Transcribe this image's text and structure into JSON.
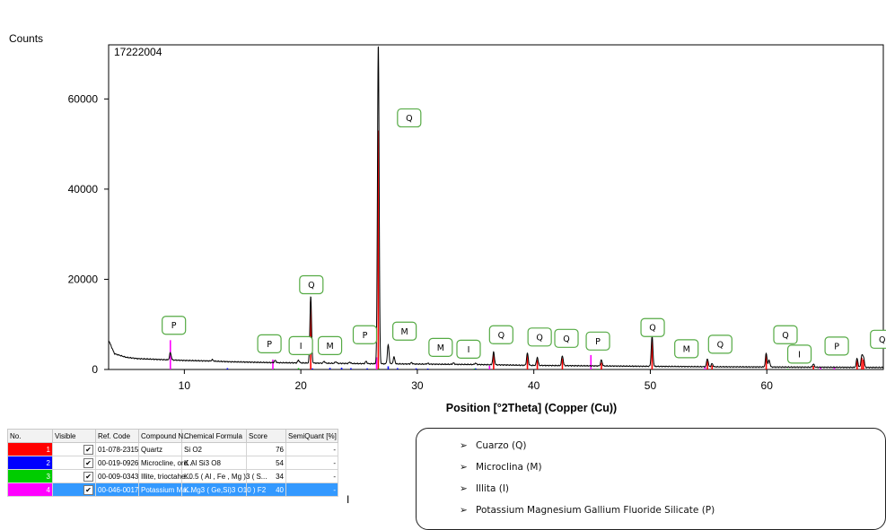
{
  "chart_data": {
    "type": "line",
    "sample_id": "17222004",
    "ylabel": "Counts",
    "xlabel": "Position [°2Theta] (Copper (Cu))",
    "xlim": [
      3.5,
      70
    ],
    "ylim": [
      0,
      72000
    ],
    "xticks": [
      10,
      20,
      30,
      40,
      50,
      60
    ],
    "yticks": [
      0,
      20000,
      40000,
      60000
    ],
    "ytick_labels": [
      "0",
      "20000",
      "40000",
      "60000"
    ],
    "pattern": {
      "name": "17222004",
      "color": "#000000",
      "baseline": [
        [
          3.5,
          6500
        ],
        [
          4,
          3500
        ],
        [
          5,
          2700
        ],
        [
          6,
          2400
        ],
        [
          8,
          2200
        ],
        [
          10,
          2000
        ],
        [
          12,
          1900
        ],
        [
          14,
          1700
        ],
        [
          16,
          1600
        ],
        [
          18,
          1500
        ],
        [
          20,
          1450
        ],
        [
          25,
          1300
        ],
        [
          30,
          1200
        ],
        [
          35,
          1100
        ],
        [
          40,
          900
        ],
        [
          45,
          800
        ],
        [
          50,
          700
        ],
        [
          55,
          600
        ],
        [
          60,
          550
        ],
        [
          65,
          500
        ],
        [
          70,
          450
        ]
      ],
      "peaks": [
        [
          8.8,
          1600
        ],
        [
          12.4,
          300
        ],
        [
          17.8,
          500
        ],
        [
          19.8,
          600
        ],
        [
          20.85,
          14800
        ],
        [
          22.0,
          400
        ],
        [
          23.0,
          350
        ],
        [
          24.2,
          300
        ],
        [
          25.6,
          500
        ],
        [
          26.65,
          71000
        ],
        [
          27.5,
          4200
        ],
        [
          28.0,
          1500
        ],
        [
          29.5,
          300
        ],
        [
          30.9,
          200
        ],
        [
          33.1,
          300
        ],
        [
          35.0,
          300
        ],
        [
          36.55,
          2800
        ],
        [
          39.45,
          2700
        ],
        [
          40.3,
          1800
        ],
        [
          42.45,
          2200
        ],
        [
          45.8,
          1300
        ],
        [
          50.15,
          6700
        ],
        [
          54.9,
          1800
        ],
        [
          55.3,
          700
        ],
        [
          59.95,
          3000
        ],
        [
          60.2,
          1500
        ],
        [
          64.0,
          700
        ],
        [
          67.75,
          2000
        ],
        [
          68.15,
          2500
        ],
        [
          68.3,
          2200
        ]
      ]
    },
    "references": [
      {
        "ref_code": "01-078-2315",
        "compound": "Quartz",
        "color": "#ff0000",
        "sticks": [
          [
            20.85,
            15000
          ],
          [
            26.65,
            53000
          ],
          [
            36.55,
            3400
          ],
          [
            39.45,
            3200
          ],
          [
            40.3,
            2100
          ],
          [
            42.45,
            2500
          ],
          [
            45.8,
            1500
          ],
          [
            50.15,
            6500
          ],
          [
            54.9,
            1900
          ],
          [
            55.3,
            900
          ],
          [
            59.95,
            3400
          ],
          [
            64.0,
            800
          ],
          [
            67.75,
            2000
          ],
          [
            68.15,
            2600
          ],
          [
            68.3,
            2200
          ]
        ]
      },
      {
        "ref_code": "00-019-0926",
        "compound": "Microcline, ord...",
        "color": "#0000ff",
        "sticks": [
          [
            13.7,
            300
          ],
          [
            21.0,
            250
          ],
          [
            22.5,
            350
          ],
          [
            23.5,
            400
          ],
          [
            24.3,
            300
          ],
          [
            25.7,
            250
          ],
          [
            27.5,
            700
          ],
          [
            28.3,
            300
          ],
          [
            29.9,
            250
          ],
          [
            30.9,
            200
          ],
          [
            35.0,
            250
          ]
        ]
      },
      {
        "ref_code": "00-009-0343",
        "compound": "Illite, trioctahe...",
        "color": "#00bb00",
        "sticks": [
          [
            8.8,
            400
          ],
          [
            17.7,
            200
          ],
          [
            19.8,
            300
          ],
          [
            26.7,
            200
          ],
          [
            34.9,
            200
          ],
          [
            45.5,
            150
          ],
          [
            61.8,
            150
          ]
        ]
      },
      {
        "ref_code": "00-046-0017",
        "compound": "Potassium Ma...",
        "color": "#ff00ff",
        "sticks": [
          [
            8.8,
            6500
          ],
          [
            17.6,
            2200
          ],
          [
            26.5,
            2700
          ],
          [
            36.2,
            800
          ],
          [
            44.9,
            3200
          ],
          [
            54.7,
            700
          ],
          [
            64.6,
            600
          ],
          [
            65.8,
            400
          ]
        ]
      }
    ],
    "annotations": [
      {
        "label": "P",
        "x": 9.1,
        "y": 9800
      },
      {
        "label": "P",
        "x": 17.3,
        "y": 5700
      },
      {
        "label": "I",
        "x": 20.0,
        "y": 5300
      },
      {
        "label": "M",
        "x": 22.5,
        "y": 5300
      },
      {
        "label": "P",
        "x": 25.5,
        "y": 7700
      },
      {
        "label": "Q",
        "x": 20.9,
        "y": 18800
      },
      {
        "label": "Q",
        "x": 29.3,
        "y": 55800
      },
      {
        "label": "M",
        "x": 28.9,
        "y": 8500
      },
      {
        "label": "M",
        "x": 32.0,
        "y": 4900
      },
      {
        "label": "I",
        "x": 34.4,
        "y": 4500
      },
      {
        "label": "Q",
        "x": 37.2,
        "y": 7700
      },
      {
        "label": "Q",
        "x": 40.5,
        "y": 7200
      },
      {
        "label": "Q",
        "x": 42.8,
        "y": 6900
      },
      {
        "label": "P",
        "x": 45.5,
        "y": 6300
      },
      {
        "label": "Q",
        "x": 50.2,
        "y": 9300
      },
      {
        "label": "M",
        "x": 53.1,
        "y": 4600
      },
      {
        "label": "Q",
        "x": 56.0,
        "y": 5600
      },
      {
        "label": "Q",
        "x": 61.6,
        "y": 7700
      },
      {
        "label": "I",
        "x": 62.8,
        "y": 3400
      },
      {
        "label": "P",
        "x": 66.0,
        "y": 5200
      },
      {
        "label": "Q",
        "x": 69.9,
        "y": 6700
      }
    ]
  },
  "table": {
    "headers": [
      "No.",
      "Visible",
      "Ref. Code",
      "Compound N...",
      "Chemical Formula",
      "Score",
      "SemiQuant [%]"
    ],
    "rows": [
      {
        "no": "1",
        "visible": "✔",
        "ref_code": "01-078-2315",
        "compound": "Quartz",
        "formula": "Si O2",
        "score": "76",
        "semiquant": "-",
        "color": "#ff0000",
        "selected": false
      },
      {
        "no": "2",
        "visible": "✔",
        "ref_code": "00-019-0926",
        "compound": "Microcline, ord...",
        "formula": "K Al Si3 O8",
        "score": "54",
        "semiquant": "-",
        "color": "#0000ff",
        "selected": false
      },
      {
        "no": "3",
        "visible": "✔",
        "ref_code": "00-009-0343",
        "compound": "Illite, trioctahe...",
        "formula": "K0.5 ( Al , Fe , Mg )3 ( S...",
        "score": "34",
        "semiquant": "-",
        "color": "#00cc00",
        "selected": false
      },
      {
        "no": "4",
        "visible": "✔",
        "ref_code": "00-046-0017",
        "compound": "Potassium Ma...",
        "formula": "K Mg3 ( Ge,Si)3 O10 ) F2",
        "score": "40",
        "semiquant": "-",
        "color": "#ff00ff",
        "selected": true
      }
    ]
  },
  "cursor_glyph": "I",
  "legend": {
    "arrow": "➢",
    "items": [
      "Cuarzo (Q)",
      "Microclina (M)",
      "Illita (I)",
      "Potassium Magnesium Gallium Fluoride Silicate (P)"
    ]
  }
}
